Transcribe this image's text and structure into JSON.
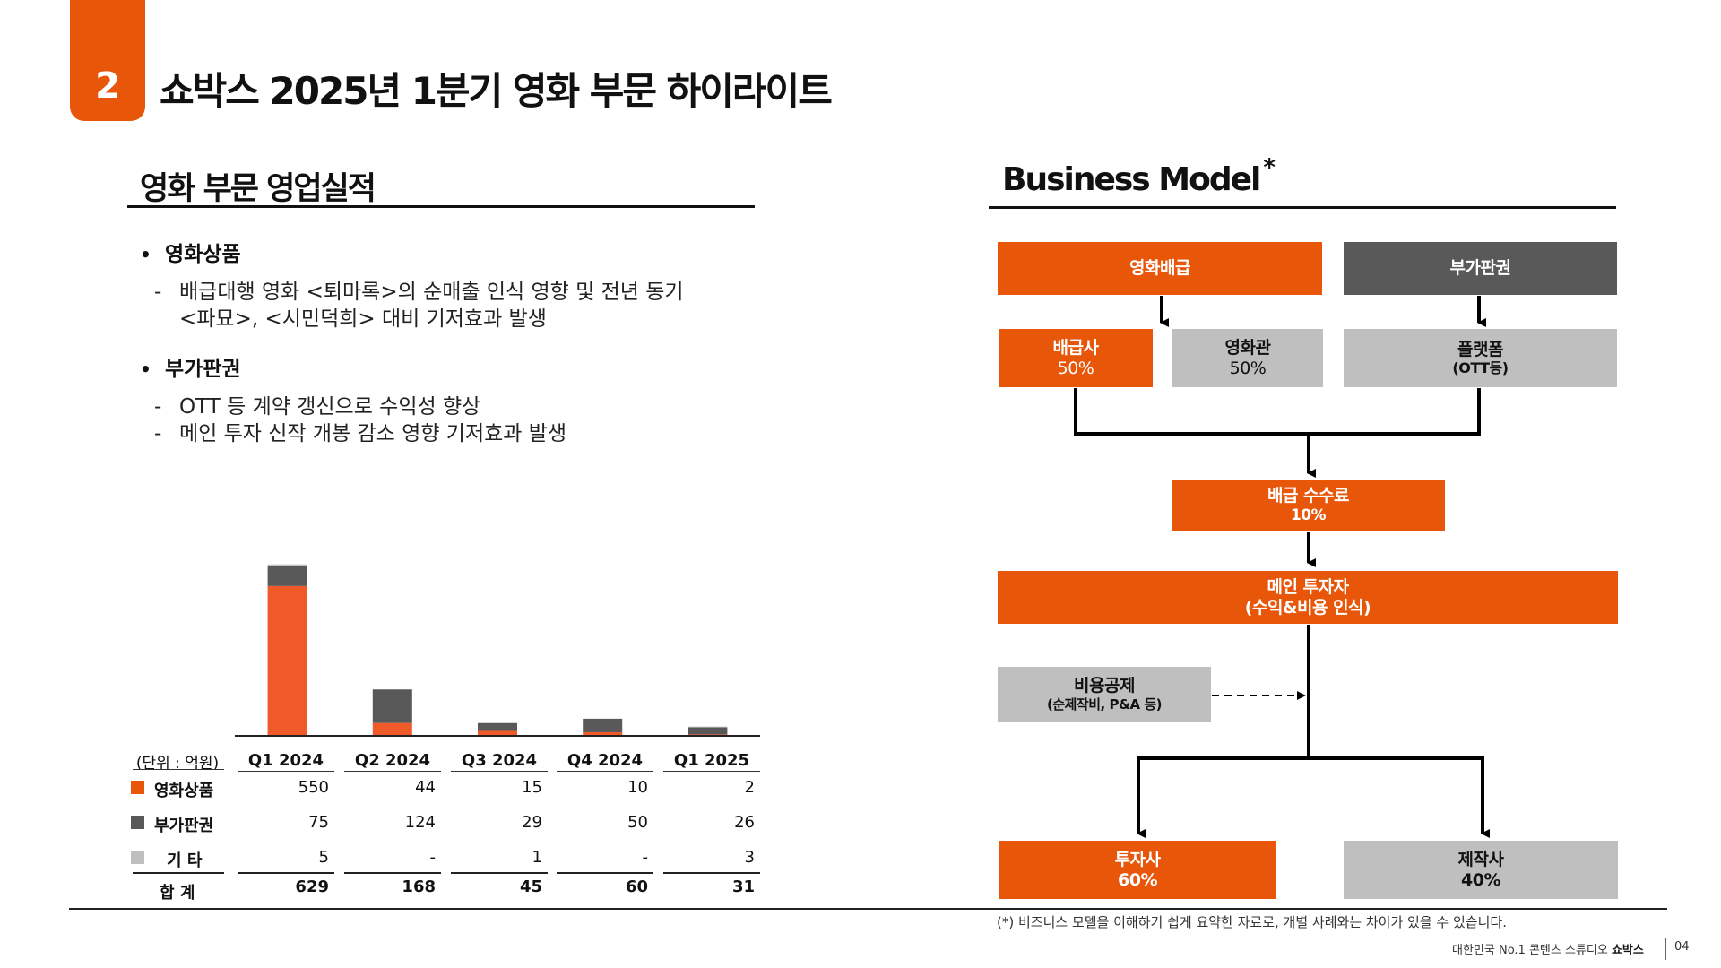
{
  "header": {
    "section_number": "2",
    "title": "쇼박스 2025년 1분기 영화 부문 하이라이트"
  },
  "left": {
    "heading": "영화 부문 영업실적",
    "bullets": [
      {
        "title": "영화상품",
        "lines": [
          "배급대행 영화 <퇴마록>의 순매출 인식 영향 및 전년 동기",
          "<파묘>, <시민덕희> 대비 기저효과 발생"
        ]
      },
      {
        "title": "부가판권",
        "lines": [
          "OTT 등 계약 갱신으로 수익성 향상",
          "메인 투자 신작 개봉 감소 영향 기저효과 발생"
        ]
      }
    ]
  },
  "chart_data": {
    "type": "bar",
    "stacked": true,
    "categories": [
      "Q1 2024",
      "Q2 2024",
      "Q3 2024",
      "Q4 2024",
      "Q1 2025"
    ],
    "series": [
      {
        "name": "영화상품",
        "values": [
          550,
          44,
          15,
          10,
          2
        ],
        "color": "#F05A28"
      },
      {
        "name": "부가판권",
        "values": [
          75,
          124,
          29,
          50,
          26
        ],
        "color": "#595959"
      },
      {
        "name": "기 타",
        "values": [
          5,
          null,
          1,
          null,
          3
        ],
        "color": "#BFBFBF"
      }
    ],
    "totals": [
      629,
      168,
      45,
      60,
      31
    ],
    "display_values": {
      "영화상품": [
        "550",
        "44",
        "15",
        "10",
        "2"
      ],
      "부가판권": [
        "75",
        "124",
        "29",
        "50",
        "26"
      ],
      "기 타": [
        "5",
        "-",
        "1",
        "-",
        "3"
      ]
    },
    "unit_label": "(단위 : 억원)",
    "total_label": "합 계",
    "ylim": [
      0,
      629
    ]
  },
  "business_model": {
    "heading": "Business Model",
    "heading_mark": "*",
    "boxes": {
      "film_distribution": "영화배급",
      "ancillary_rights": "부가판권",
      "distributor": {
        "label": "배급사",
        "value": "50%"
      },
      "theater": {
        "label": "영화관",
        "value": "50%"
      },
      "platform": {
        "label": "플랫폼",
        "value": "(OTT등)"
      },
      "distribution_fee": {
        "label": "배급 수수료",
        "value": "10%"
      },
      "main_investor": {
        "label": "메인 투자자",
        "value": "(수익&비용 인식)"
      },
      "cost_deduction": {
        "label": "비용공제",
        "value": "(순제작비, P&A 등)"
      },
      "investor": {
        "label": "투자사",
        "value": "60%"
      },
      "producer": {
        "label": "제작사",
        "value": "40%"
      }
    },
    "colors": {
      "orange": "#E8560A",
      "dark": "#595959",
      "gray": "#BFBFBF"
    }
  },
  "footer": {
    "footnote": "(*) 비즈니스 모델을 이해하기 쉽게 요약한 자료로, 개별 사례와는 차이가 있을 수 있습니다.",
    "brand_prefix": "대한민국 No.1 콘텐츠 스튜디오 ",
    "brand_name": "쇼박스",
    "page_number": "04"
  }
}
